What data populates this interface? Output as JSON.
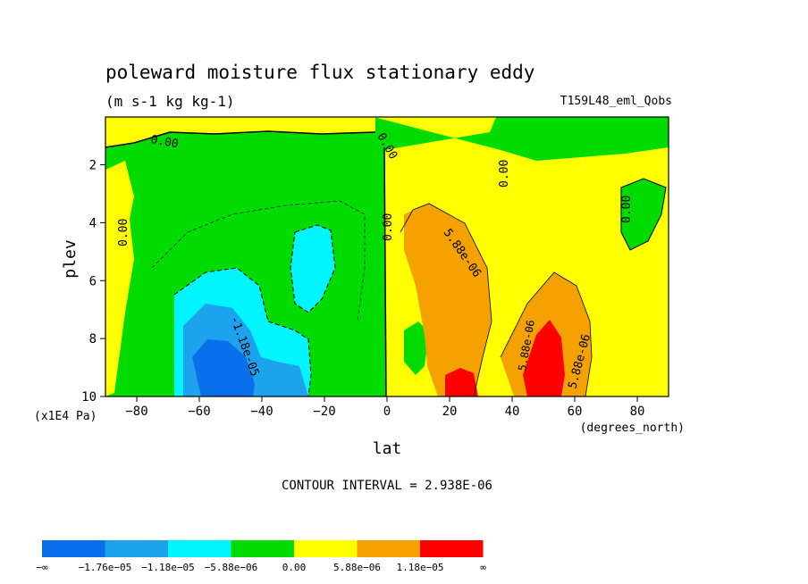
{
  "chart_data": {
    "type": "heatmap",
    "title": "poleward moisture flux stationary eddy",
    "subtitle": "(m s-1 kg kg-1)",
    "dataset_label": "T159L48_eml_Qobs",
    "xlabel": "lat",
    "x_unit": "(degrees_north)",
    "ylabel": "plev",
    "y_unit": "(x1E4 Pa)",
    "xlim": [
      -90,
      90
    ],
    "ylim": [
      10,
      0.35
    ],
    "x_ticks": [
      -80,
      -60,
      -40,
      -20,
      0,
      20,
      40,
      60,
      80
    ],
    "x_tick_labels": [
      "−80",
      "−60",
      "−40",
      "−20",
      "0",
      "20",
      "40",
      "60",
      "80"
    ],
    "y_ticks": [
      2,
      4,
      6,
      8,
      10
    ],
    "y_tick_labels": [
      "2",
      "4",
      "6",
      "8",
      "10"
    ],
    "contour_interval_text": "CONTOUR INTERVAL = 2.938E-06",
    "contour_labels": [
      "0.00",
      "0.00",
      "0.00",
      "0.00",
      "0.00",
      "0.00",
      "5.88e-06",
      "5.88e-06",
      "5.88e-06",
      "-1.18e-05"
    ],
    "colorbar": {
      "colors": [
        "#0a6fea",
        "#1da3ee",
        "#00f5ff",
        "#00dc00",
        "#ffff00",
        "#f5a200",
        "#ff0000"
      ],
      "labels": [
        "−∞",
        "−1.76e−05",
        "−1.18e−05",
        "−5.88e−06",
        "0.00",
        "5.88e−06",
        "1.18e−05",
        "∞"
      ]
    }
  }
}
